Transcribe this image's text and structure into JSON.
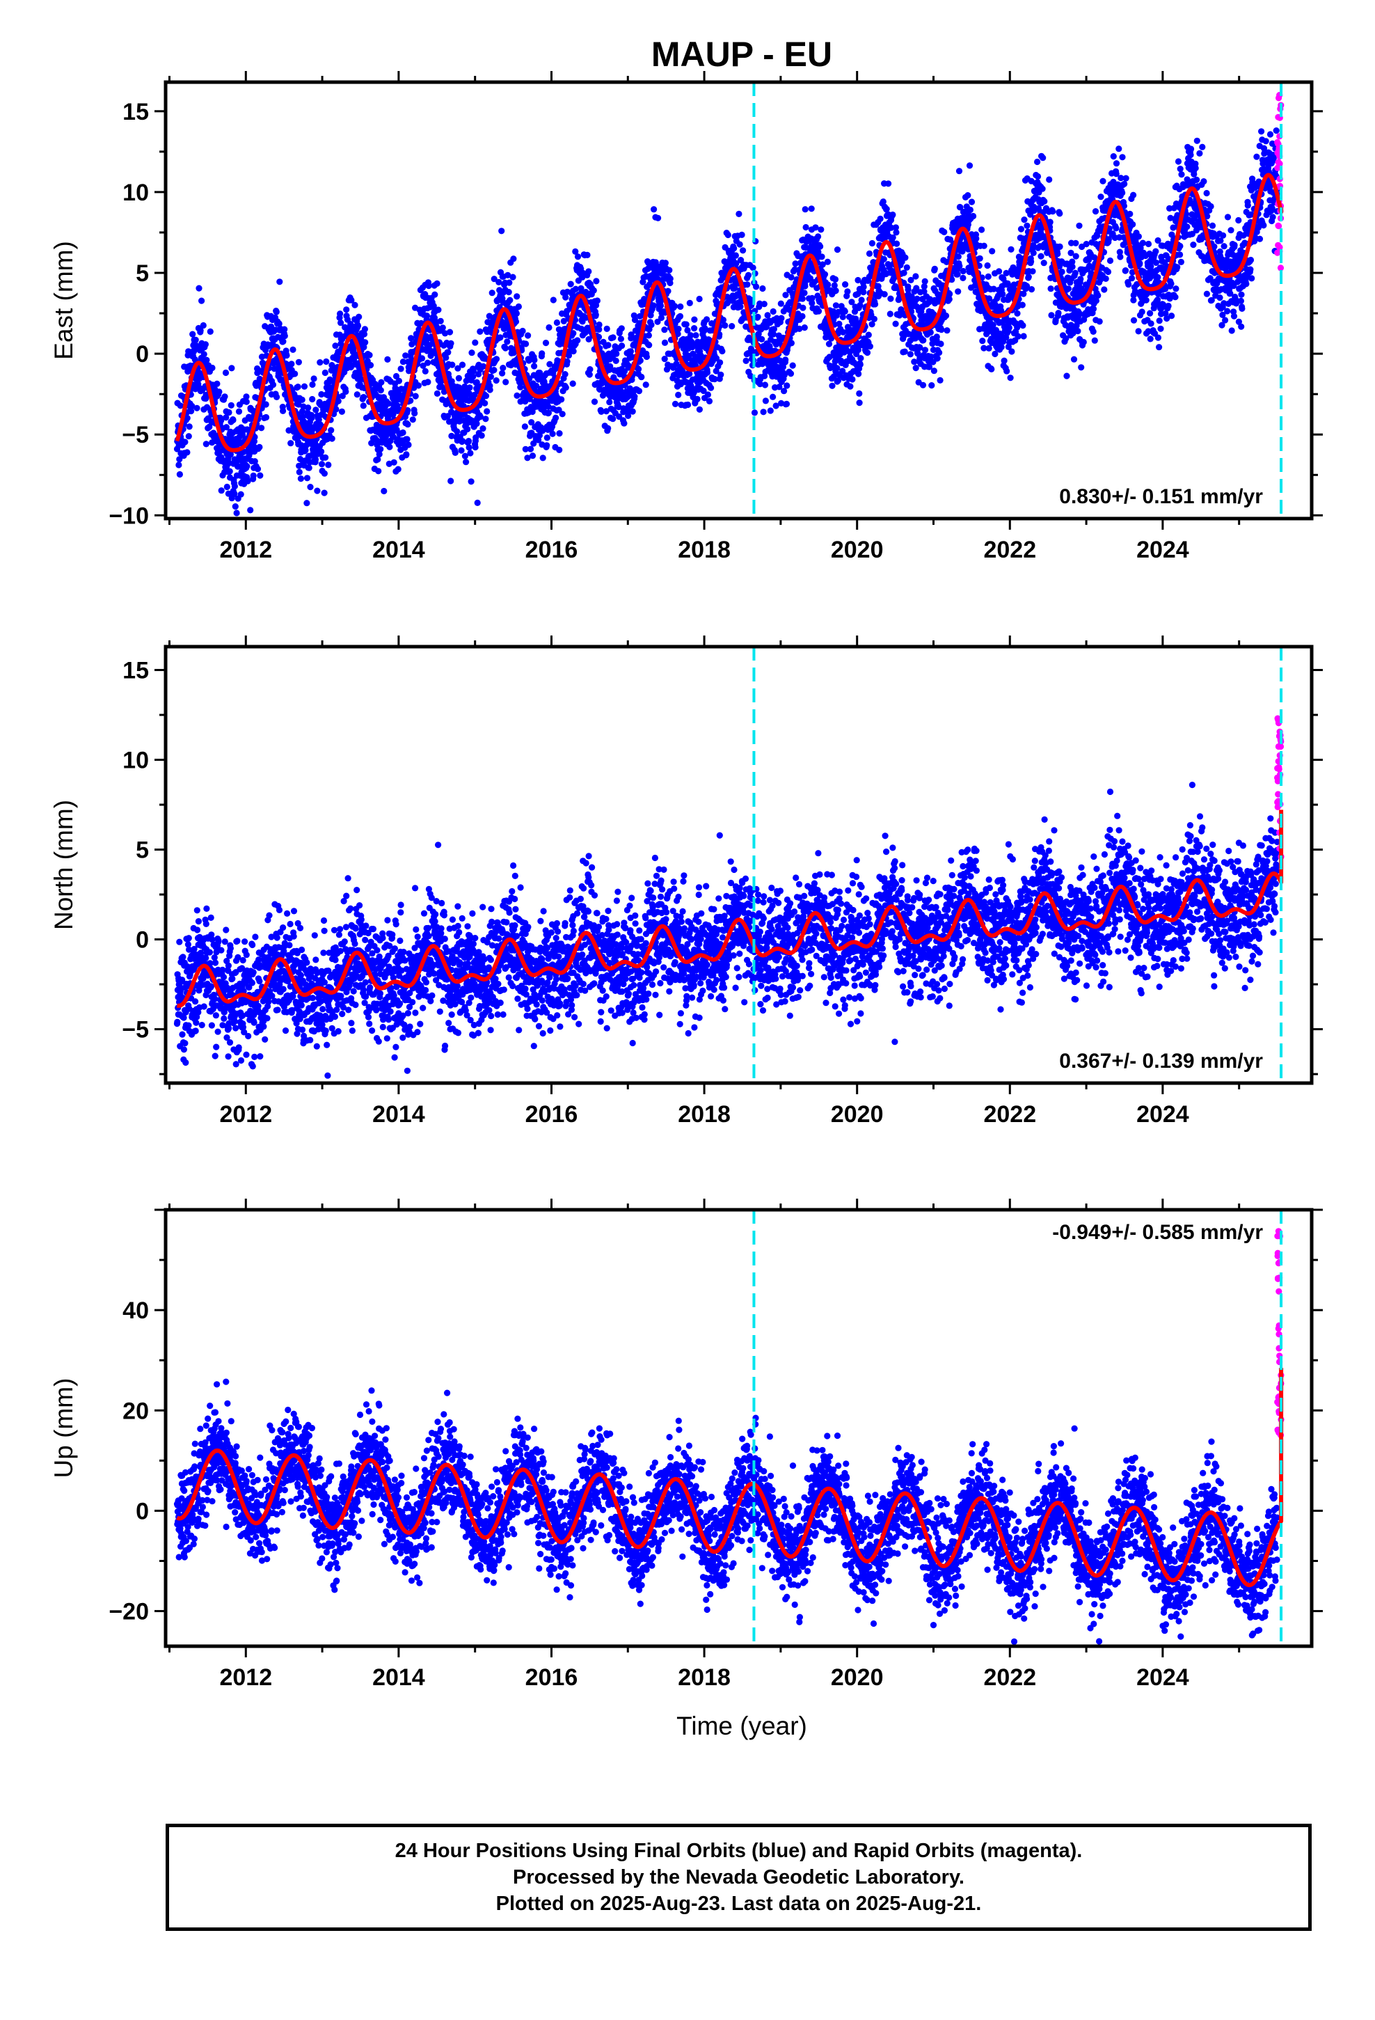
{
  "title": "MAUP - EU",
  "xlabel": "Time (year)",
  "colors": {
    "final_orbits": "#0000ff",
    "rapid_orbits": "#ff00ff",
    "model": "#ff0000",
    "event": "#00e5ee",
    "frame": "#000000"
  },
  "caption": [
    "24 Hour Positions Using Final Orbits (blue) and Rapid Orbits (magenta).",
    "Processed by the Nevada Geodetic Laboratory.",
    "Plotted on 2025-Aug-23. Last data on 2025-Aug-21."
  ],
  "chart_data": [
    {
      "type": "scatter",
      "name": "east",
      "ylabel": "East (mm)",
      "rate_label": "0.830+/- 0.151 mm/yr",
      "xlim": [
        2010.95,
        2025.95
      ],
      "ylim": [
        -10.2,
        16.8
      ],
      "yticks": [
        -10,
        -5,
        0,
        5,
        10,
        15
      ],
      "xticks": [
        2012,
        2014,
        2016,
        2018,
        2020,
        2022,
        2024
      ],
      "event_lines": [
        2018.65,
        2025.55
      ],
      "model": {
        "offset": -4.3,
        "rate": 0.83,
        "annual_amp": 2.9,
        "annual_phase": 2011.38,
        "semi_amp": 0.6,
        "noise_sd": 1.3
      },
      "data_start": 2011.1,
      "data_end": 2025.55,
      "rapid_start": 2025.5,
      "rapid_range": [
        4.5,
        16.3
      ]
    },
    {
      "type": "scatter",
      "name": "north",
      "ylabel": "North (mm)",
      "rate_label": "0.367+/- 0.139 mm/yr",
      "xlim": [
        2010.95,
        2025.95
      ],
      "ylim": [
        -8.0,
        16.3
      ],
      "yticks": [
        -5,
        0,
        5,
        10,
        15
      ],
      "xticks": [
        2012,
        2014,
        2016,
        2018,
        2020,
        2022,
        2024
      ],
      "event_lines": [
        2018.65,
        2025.55
      ],
      "model": {
        "offset": -3.0,
        "rate": 0.367,
        "annual_amp": 0.9,
        "annual_phase": 2011.45,
        "semi_amp": 0.5,
        "noise_sd": 1.3
      },
      "data_start": 2011.1,
      "data_end": 2025.55,
      "rapid_start": 2025.5,
      "rapid_range": [
        4.0,
        12.6
      ]
    },
    {
      "type": "scatter",
      "name": "up",
      "ylabel": "Up (mm)",
      "rate_label": "-0.949+/- 0.585 mm/yr",
      "xlim": [
        2010.95,
        2025.95
      ],
      "ylim": [
        -27.0,
        60.0
      ],
      "yticks": [
        -20,
        0,
        20,
        40
      ],
      "xticks": [
        2012,
        2014,
        2016,
        2018,
        2020,
        2022,
        2024
      ],
      "event_lines": [
        2018.65,
        2025.55
      ],
      "model": {
        "offset": 5.5,
        "rate": -0.949,
        "annual_amp": 7.0,
        "annual_phase": 2011.63,
        "semi_amp": 0.0,
        "noise_sd": 4.0
      },
      "data_start": 2011.1,
      "data_end": 2025.55,
      "rapid_start": 2025.5,
      "rapid_range": [
        8.0,
        57.5
      ]
    }
  ]
}
